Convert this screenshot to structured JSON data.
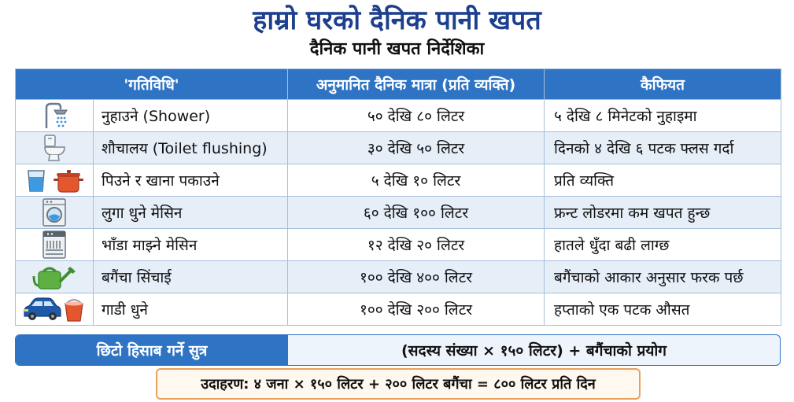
{
  "title": "हाम्रो घरको दैनिक पानी खपत",
  "subtitle": "दैनिक पानी खपत निर्देशिका",
  "table": {
    "headers": [
      "'गतिविधि'",
      "अनुमानित दैनिक मात्रा (प्रति व्यक्ति)",
      "कैफियत"
    ],
    "rows": [
      {
        "icon": "shower-icon",
        "activity": "नुहाउने (Shower)",
        "amount": "५० देखि ८० लिटर",
        "remark": "५ देखि ८ मिनेटको नुहाइमा"
      },
      {
        "icon": "toilet-icon",
        "activity": "शौचालय (Toilet flushing)",
        "amount": "३० देखि ५० लिटर",
        "remark": "दिनको ४ देखि ६ पटक फ्लस गर्दा"
      },
      {
        "icon": "glass-and-pot-icon",
        "activity": "पिउने र खाना पकाउने",
        "amount": "५ देखि १० लिटर",
        "remark": "प्रति व्यक्ति"
      },
      {
        "icon": "washing-machine-icon",
        "activity": "लुगा धुने मेसिन",
        "amount": "६० देखि १०० लिटर",
        "remark": "फ्रन्ट लोडरमा कम खपत हुन्छ"
      },
      {
        "icon": "dishwasher-icon",
        "activity": "भाँडा माझ्ने मेसिन",
        "amount": "१२ देखि २० लिटर",
        "remark": "हातले धुँदा बढी लाग्छ"
      },
      {
        "icon": "watering-can-icon",
        "activity": "बगैंचा सिंचाई",
        "amount": "१०० देखि ४०० लिटर",
        "remark": "बगैंचाको आकार अनुसार फरक पर्छ"
      },
      {
        "icon": "car-and-bucket-icon",
        "activity": "गाडी धुने",
        "amount": "१०० देखि २०० लिटर",
        "remark": "हप्ताको एक पटक औसत"
      }
    ]
  },
  "formula": {
    "label": "छिटो हिसाब गर्ने सुत्र",
    "value": "(सदस्य संख्या × १५० लिटर) + बगैंचाको प्रयोग"
  },
  "example": "उदाहरण: ४ जना × १५० लिटर + २०० लिटर बगैंचा = ८०० लिटर प्रति दिन",
  "colors": {
    "title": "#1d3f8f",
    "header_bg": "#2f74c4",
    "row_alt_bg": "#e6eef8",
    "example_border": "#e8a15c"
  }
}
